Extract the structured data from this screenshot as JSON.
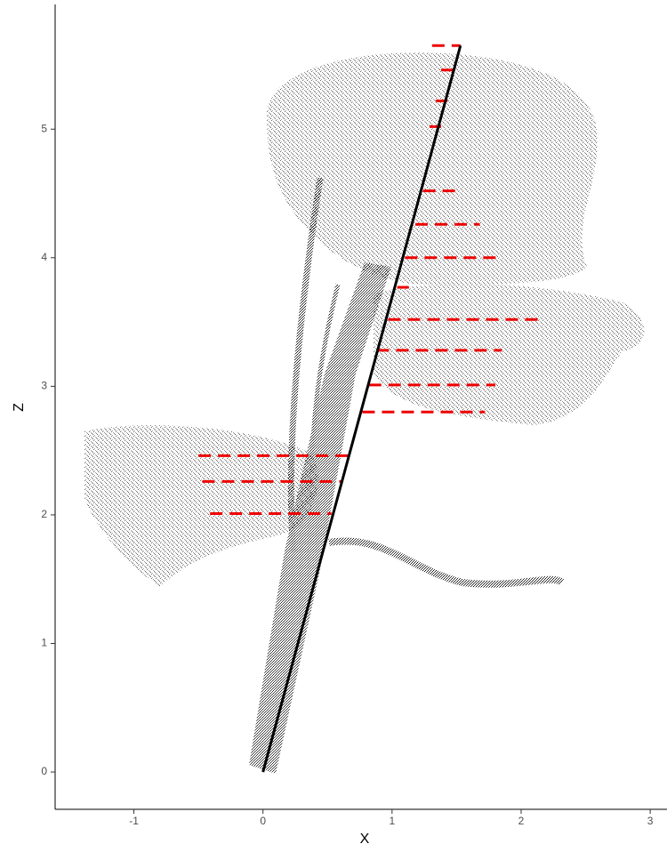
{
  "chart_data": {
    "type": "line",
    "xlabel": "X",
    "ylabel": "Z",
    "xlim": [
      -1.61,
      3.13
    ],
    "ylim": [
      -0.29,
      5.97
    ],
    "xticks": [
      -1,
      0,
      1,
      2,
      3
    ],
    "yticks": [
      0,
      1,
      2,
      3,
      4,
      5
    ],
    "line": {
      "color": "#000000",
      "x": [
        0,
        1.53
      ],
      "z": [
        0,
        5.65
      ]
    },
    "segment_color": "#ee0000",
    "segments": [
      {
        "x": [
          1.31,
          1.53
        ],
        "z": 5.65
      },
      {
        "x": [
          1.38,
          1.49
        ],
        "z": 5.46
      },
      {
        "x": [
          1.34,
          1.43
        ],
        "z": 5.22
      },
      {
        "x": [
          1.29,
          1.38
        ],
        "z": 5.02
      },
      {
        "x": [
          1.24,
          1.54
        ],
        "z": 4.52
      },
      {
        "x": [
          1.18,
          1.68
        ],
        "z": 4.26
      },
      {
        "x": [
          1.1,
          1.82
        ],
        "z": 4.0
      },
      {
        "x": [
          1.04,
          1.13
        ],
        "z": 3.77
      },
      {
        "x": [
          0.97,
          2.15
        ],
        "z": 3.52
      },
      {
        "x": [
          0.88,
          1.85
        ],
        "z": 3.28
      },
      {
        "x": [
          0.82,
          1.8
        ],
        "z": 3.01
      },
      {
        "x": [
          0.77,
          1.72
        ],
        "z": 2.8
      },
      {
        "x": [
          -0.5,
          0.66
        ],
        "z": 2.46
      },
      {
        "x": [
          -0.47,
          0.61
        ],
        "z": 2.26
      },
      {
        "x": [
          -0.41,
          0.53
        ],
        "z": 2.01
      }
    ]
  }
}
